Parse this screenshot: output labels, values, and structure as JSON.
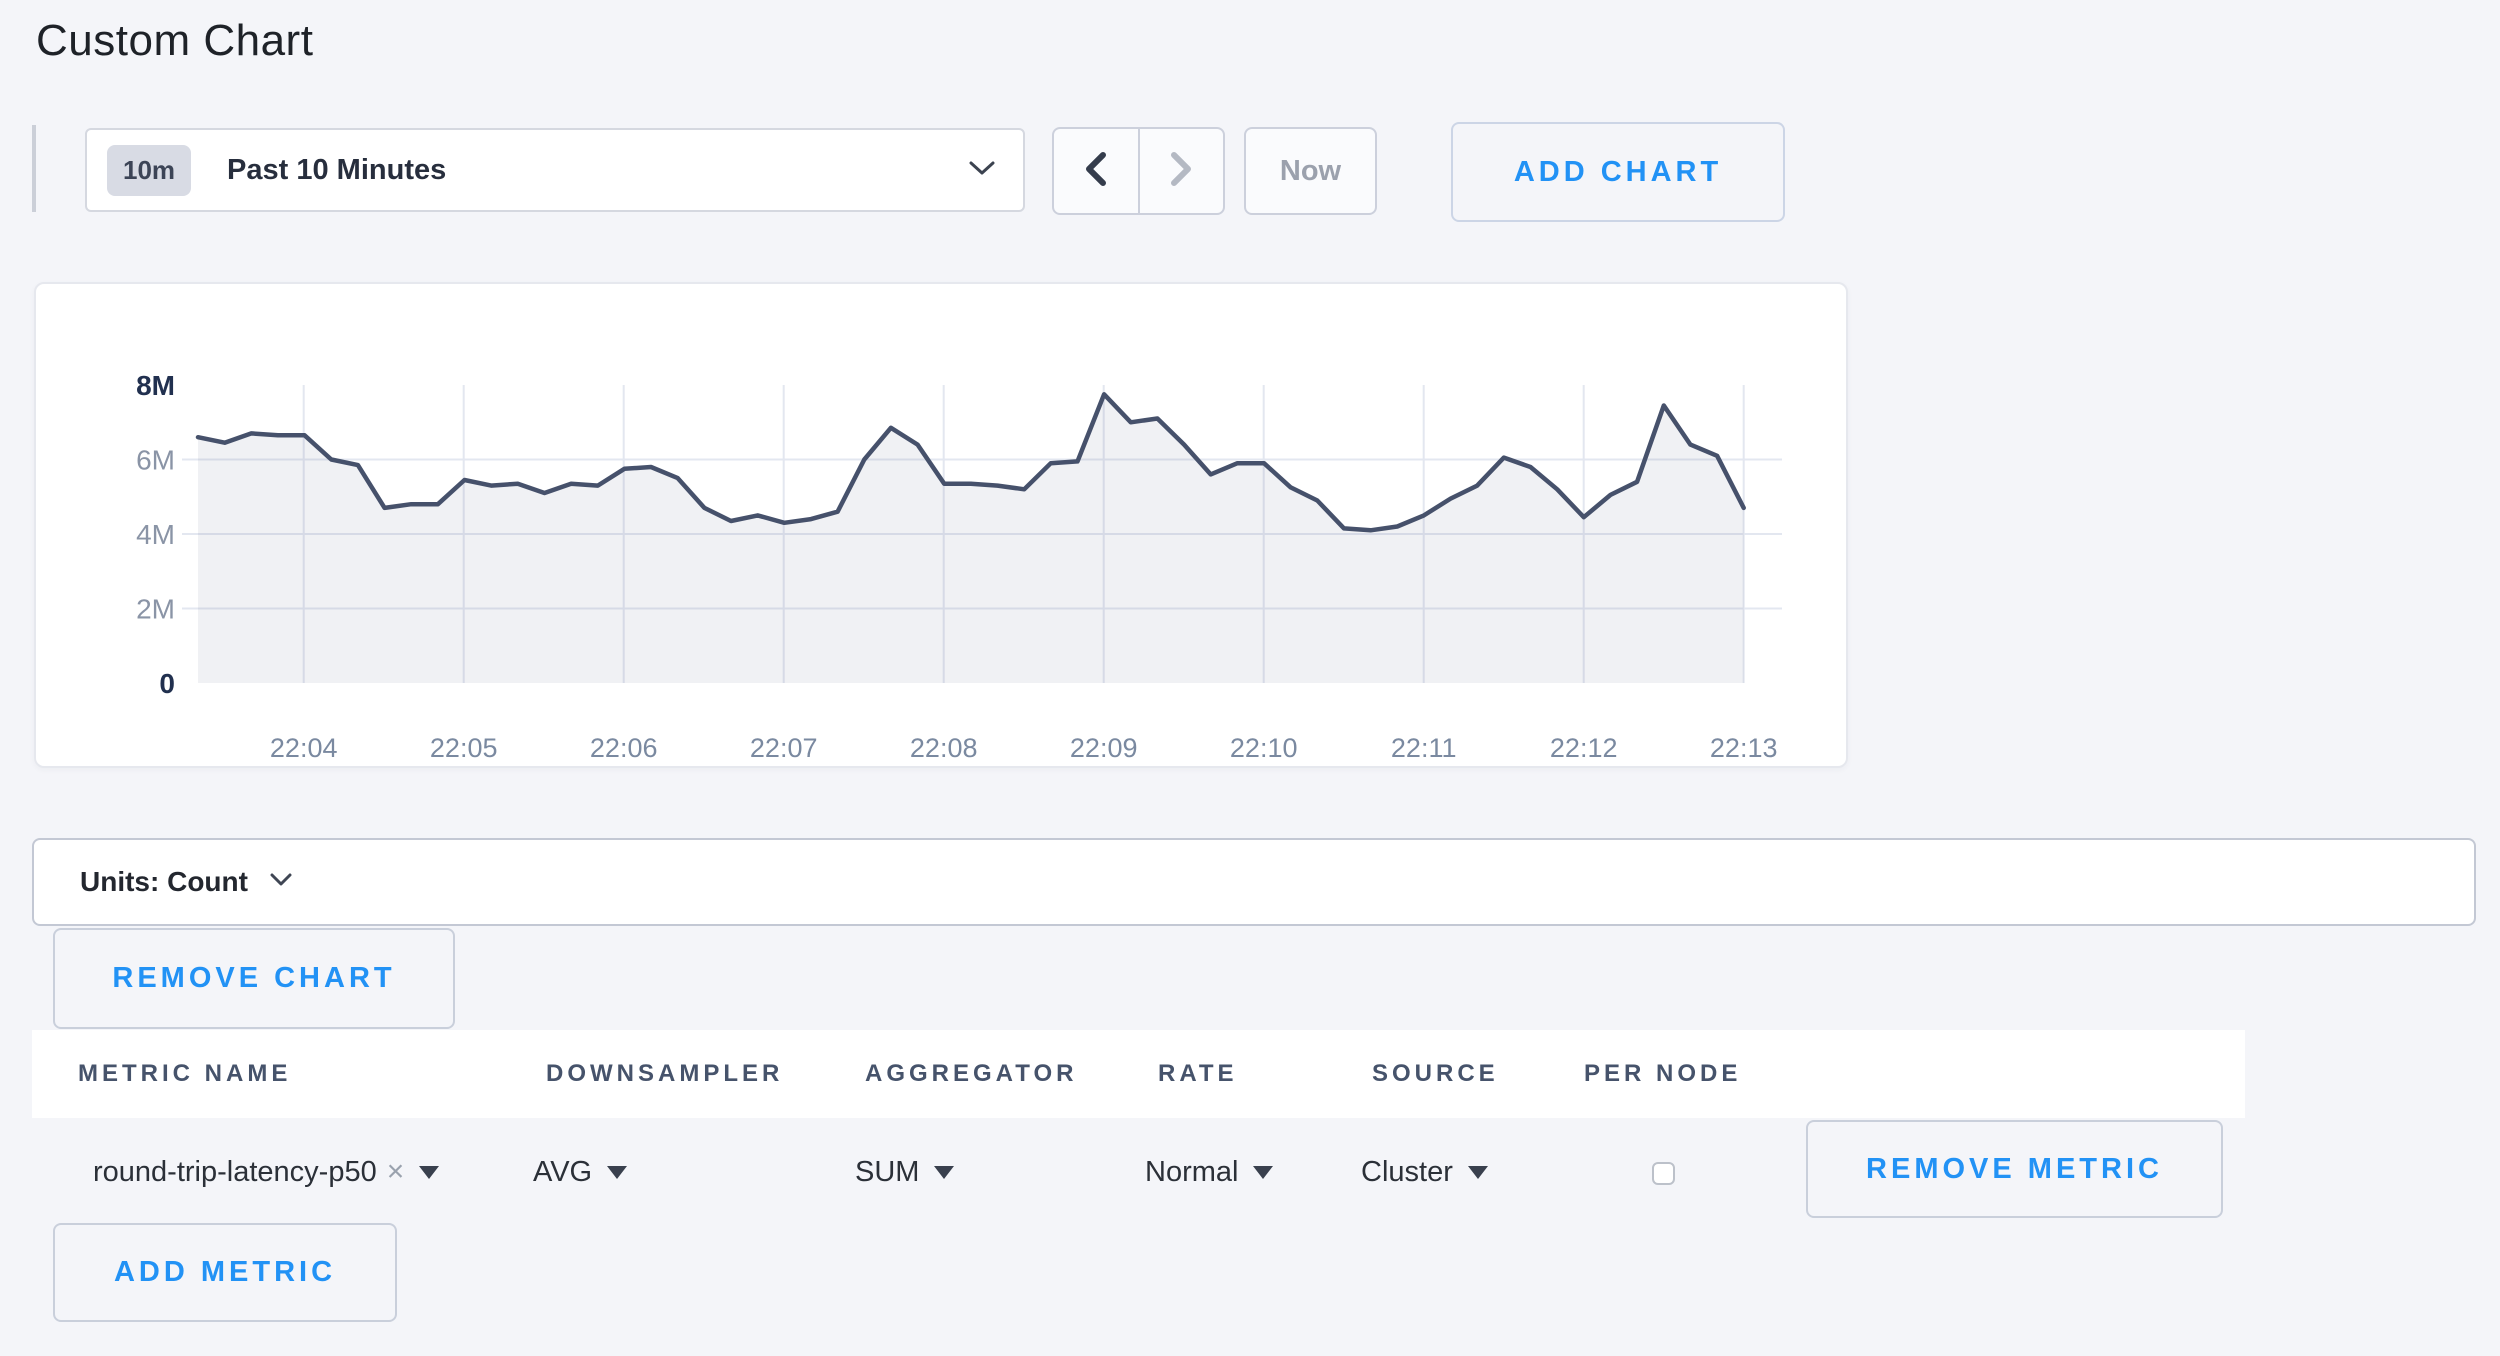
{
  "page": {
    "title": "Custom Chart"
  },
  "toolbar": {
    "time_window_badge": "10m",
    "time_window_label": "Past 10 Minutes",
    "now_label": "Now",
    "add_chart_label": "ADD CHART"
  },
  "units_bar": {
    "label": "Units: Count"
  },
  "chart_actions": {
    "remove_chart_label": "REMOVE CHART"
  },
  "metrics_table": {
    "headers": [
      "METRIC NAME",
      "DOWNSAMPLER",
      "AGGREGATOR",
      "RATE",
      "SOURCE",
      "PER NODE"
    ],
    "row": {
      "metric_name": "round-trip-latency-p50",
      "remove_tag_icon": "×",
      "downsampler": "AVG",
      "aggregator": "SUM",
      "rate": "Normal",
      "source": "Cluster",
      "per_node_checked": false,
      "remove_metric_label": "REMOVE METRIC"
    },
    "add_metric_label": "ADD METRIC"
  },
  "chart_data": {
    "type": "area",
    "title": "",
    "xlabel": "",
    "ylabel": "Count",
    "legend": "none",
    "grid": true,
    "start_time": "22:03:20",
    "interval_seconds": 10,
    "x_ticks": [
      "22:04",
      "22:05",
      "22:06",
      "22:07",
      "22:08",
      "22:09",
      "22:10",
      "22:11",
      "22:12",
      "22:13"
    ],
    "y_ticks": [
      "0",
      "2M",
      "4M",
      "6M",
      "8M"
    ],
    "ylim_millions": [
      0,
      8
    ],
    "line_color": "#46516b",
    "fill_color": "rgba(70,82,110,0.08)",
    "series": [
      {
        "name": "round-trip-latency-p50",
        "values_millions": [
          6.6,
          6.45,
          6.7,
          6.65,
          6.65,
          6.0,
          5.85,
          4.7,
          4.8,
          4.8,
          5.45,
          5.3,
          5.35,
          5.1,
          5.35,
          5.3,
          5.75,
          5.8,
          5.5,
          4.7,
          4.35,
          4.5,
          4.3,
          4.4,
          4.6,
          6.0,
          6.85,
          6.4,
          5.35,
          5.35,
          5.3,
          5.2,
          5.9,
          5.95,
          7.75,
          7.0,
          7.1,
          6.4,
          5.6,
          5.9,
          5.9,
          5.25,
          4.9,
          4.15,
          4.1,
          4.2,
          4.5,
          4.95,
          5.3,
          6.05,
          5.8,
          5.2,
          4.45,
          5.05,
          5.4,
          7.45,
          6.4,
          6.1,
          4.7
        ]
      }
    ]
  }
}
